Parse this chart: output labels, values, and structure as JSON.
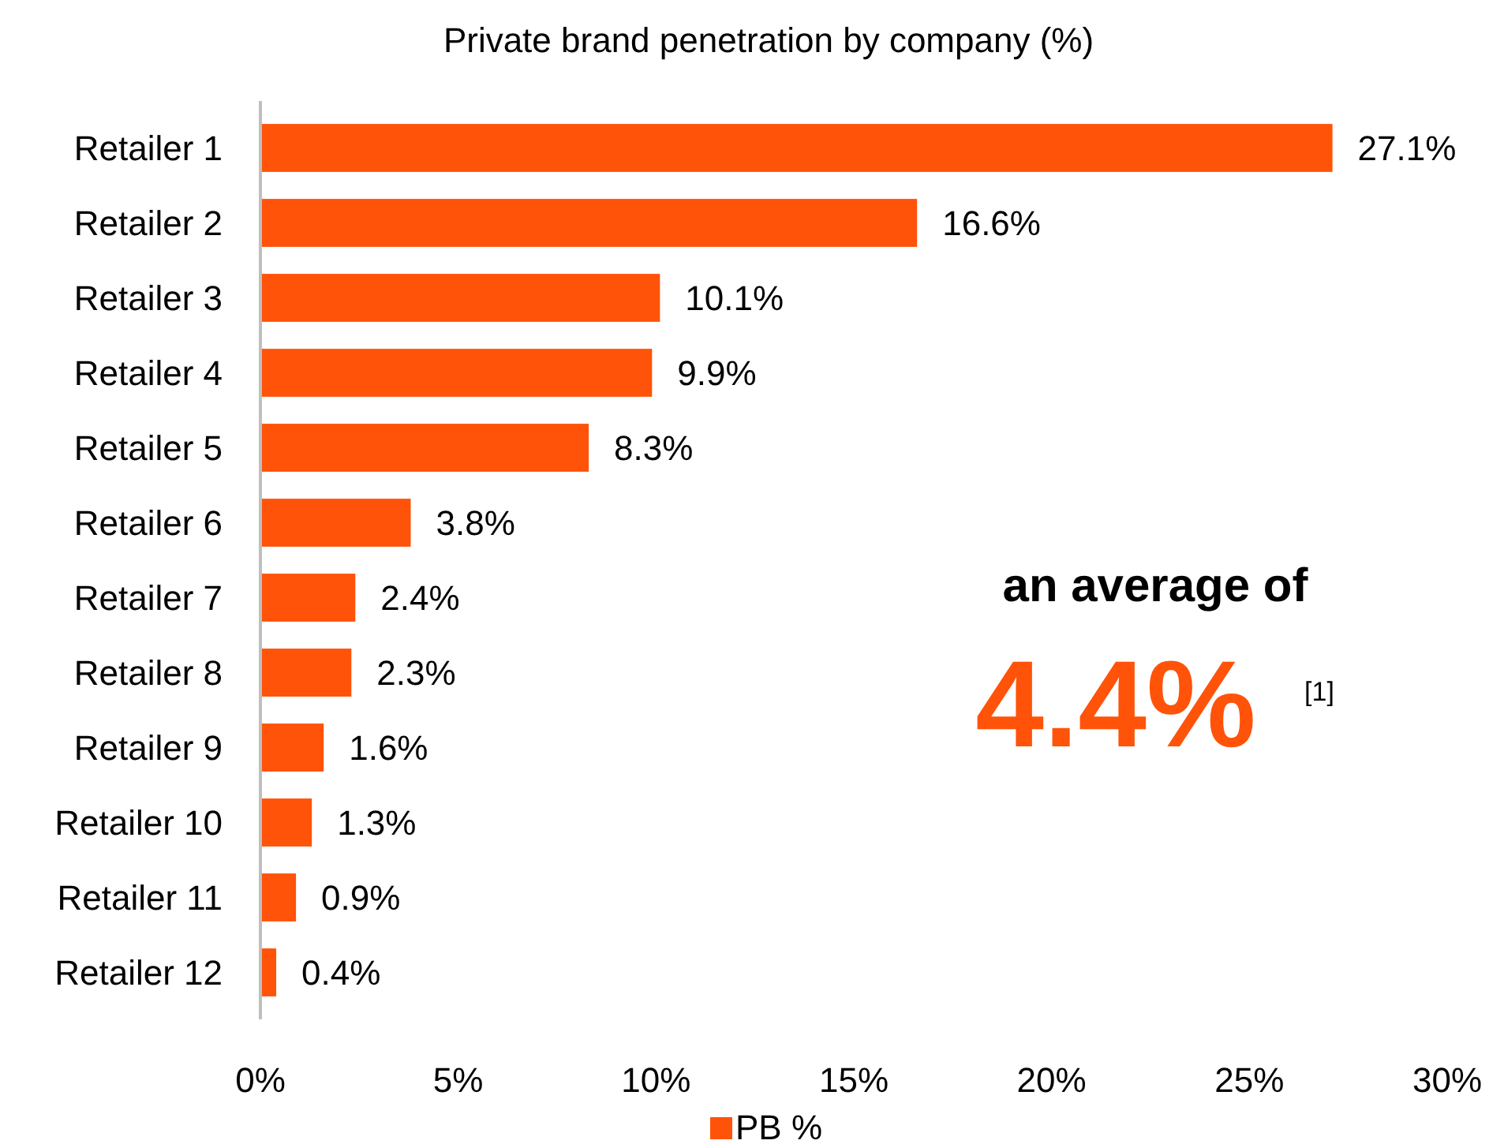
{
  "chart_data": {
    "type": "bar",
    "orientation": "horizontal",
    "title": "Private brand penetration by company (%)",
    "categories": [
      "Retailer 1",
      "Retailer 2",
      "Retailer 3",
      "Retailer 4",
      "Retailer 5",
      "Retailer 6",
      "Retailer 7",
      "Retailer 8",
      "Retailer 9",
      "Retailer 10",
      "Retailer 11",
      "Retailer 12"
    ],
    "series": [
      {
        "name": "PB %",
        "color": "#ff5309",
        "values": [
          27.1,
          16.6,
          10.1,
          9.9,
          8.3,
          3.8,
          2.4,
          2.3,
          1.6,
          1.3,
          0.9,
          0.4
        ],
        "value_labels": [
          "27.1%",
          "16.6%",
          "10.1%",
          "9.9%",
          "8.3%",
          "3.8%",
          "2.4%",
          "2.3%",
          "1.6%",
          "1.3%",
          "0.9%",
          "0.4%"
        ]
      }
    ],
    "xlim": [
      0,
      30
    ],
    "xticks": [
      {
        "value": 0,
        "label": "0%"
      },
      {
        "value": 5,
        "label": "5%"
      },
      {
        "value": 10,
        "label": "10%"
      },
      {
        "value": 15,
        "label": "15%"
      },
      {
        "value": 20,
        "label": "20%"
      },
      {
        "value": 25,
        "label": "25%"
      },
      {
        "value": 30,
        "label": "30%"
      }
    ],
    "annotations": [
      "an average of",
      "4.4%",
      "[1]"
    ],
    "legend": "bottom",
    "grid": false
  }
}
